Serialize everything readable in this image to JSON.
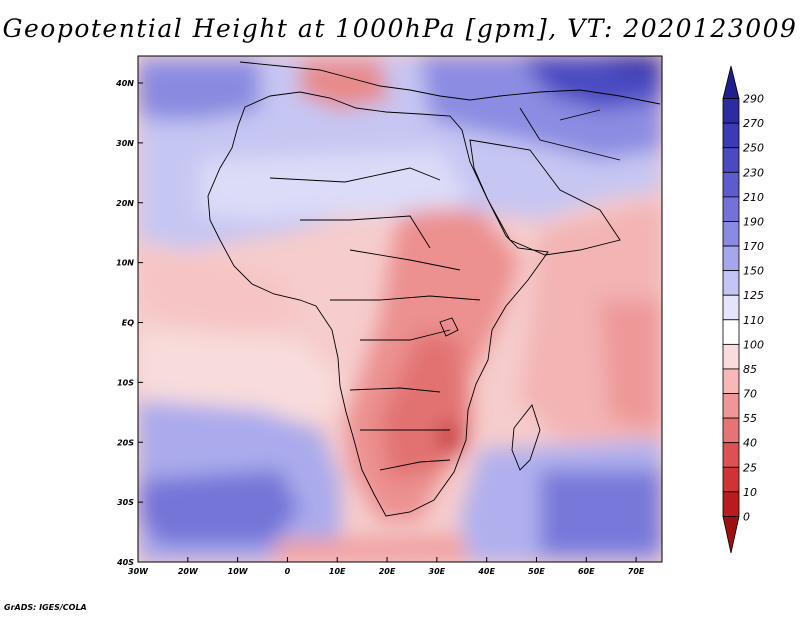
{
  "title": "Geopotential Height at 1000hPa [gpm], VT: 2020123009",
  "credit": "GrADS: IGES/COLA",
  "axes": {
    "x_ticks": [
      "30W",
      "20W",
      "10W",
      "0",
      "10E",
      "20E",
      "30E",
      "40E",
      "50E",
      "60E",
      "70E"
    ],
    "y_ticks": [
      "40N",
      "30N",
      "20N",
      "10N",
      "EQ",
      "10S",
      "20S",
      "30S",
      "40S"
    ]
  },
  "colorbar": {
    "labels": [
      "290",
      "270",
      "250",
      "230",
      "210",
      "190",
      "170",
      "150",
      "125",
      "110",
      "100",
      "85",
      "70",
      "55",
      "40",
      "25",
      "10",
      "0"
    ],
    "colors": [
      "#1f1f8f",
      "#2c2ca2",
      "#3b3bb3",
      "#4a4ac1",
      "#5c5cce",
      "#7272d8",
      "#8a8ae2",
      "#a6a6ec",
      "#c4c4f5",
      "#e4e4fb",
      "#ffffff",
      "#fbdcdc",
      "#f7b8b8",
      "#ef9696",
      "#e67474",
      "#dc5252",
      "#ce3434",
      "#b81c1c",
      "#9e1010"
    ]
  },
  "colors": {
    "ocean_bg": "#f3c6c6",
    "coastline": "#000000"
  }
}
